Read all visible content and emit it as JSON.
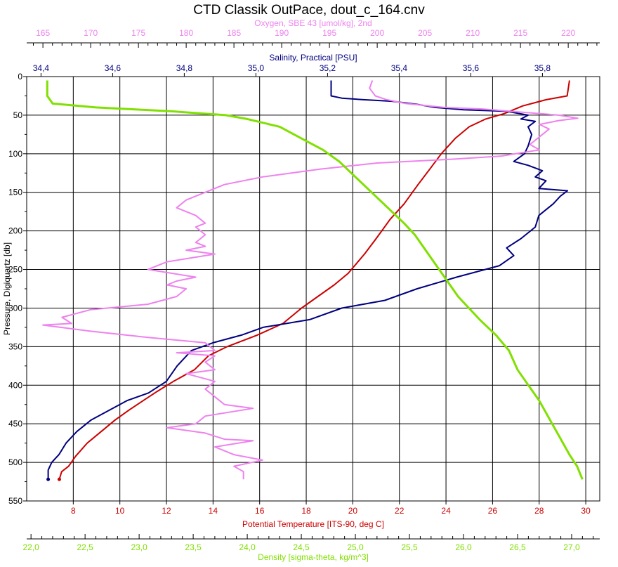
{
  "chart_data": {
    "type": "line",
    "title": "CTD Classik OutPace, dout_c_164.cnv",
    "grid": true,
    "y_axis": {
      "label": "Pressure, Digiquartz [db]",
      "range": [
        0,
        550
      ],
      "ticks": [
        0,
        50,
        100,
        150,
        200,
        250,
        300,
        350,
        400,
        450,
        500,
        550
      ],
      "tick_labels": [
        "0",
        "50",
        "100",
        "150",
        "200",
        "250",
        "300",
        "350",
        "400",
        "450",
        "500",
        "550"
      ],
      "inverted": true
    },
    "x_axes": [
      {
        "id": "oxygen",
        "label": "Oxygen, SBE 43 [umol/kg], 2nd",
        "position": "top",
        "range": [
          163.3,
          223.3
        ],
        "color": "#ee82ee",
        "ticks": [
          165,
          170,
          175,
          180,
          185,
          190,
          195,
          200,
          205,
          210,
          215,
          220
        ],
        "tick_labels": [
          "165",
          "170",
          "175",
          "180",
          "185",
          "190",
          "195",
          "200",
          "205",
          "210",
          "215",
          "220"
        ]
      },
      {
        "id": "salinity",
        "label": "Salinity, Practical [PSU]",
        "position": "top",
        "range": [
          34.36,
          35.96
        ],
        "color": "#000080",
        "ticks": [
          34.4,
          34.6,
          34.8,
          35.0,
          35.2,
          35.4,
          35.6,
          35.8
        ],
        "tick_labels": [
          "34,4",
          "34,6",
          "34,8",
          "35,0",
          "35,2",
          "35,4",
          "35,6",
          "35,8"
        ]
      },
      {
        "id": "temperature",
        "label": "Potential Temperature [ITS-90, deg C]",
        "position": "bottom",
        "range": [
          6.0,
          30.6
        ],
        "color": "#cc0000",
        "ticks": [
          8,
          10,
          12,
          14,
          16,
          18,
          20,
          22,
          24,
          26,
          28,
          30
        ],
        "tick_labels": [
          "8",
          "10",
          "12",
          "14",
          "16",
          "18",
          "20",
          "22",
          "24",
          "26",
          "28",
          "30"
        ]
      },
      {
        "id": "density",
        "label": "Density [sigma-theta, kg/m^3]",
        "position": "bottom",
        "range": [
          21.96,
          27.26
        ],
        "color": "#80e000",
        "ticks": [
          22.0,
          22.5,
          23.0,
          23.5,
          24.0,
          24.5,
          25.0,
          25.5,
          26.0,
          26.5,
          27.0
        ],
        "tick_labels": [
          "22,0",
          "22,5",
          "23,0",
          "23,5",
          "24,0",
          "24,5",
          "25,0",
          "25,5",
          "26,0",
          "26,5",
          "27,0"
        ]
      }
    ],
    "series": [
      {
        "axis": "temperature",
        "color": "#cc0000",
        "points": [
          [
            29.3,
            5
          ],
          [
            29.2,
            25
          ],
          [
            28.3,
            30
          ],
          [
            27.3,
            38
          ],
          [
            26.5,
            48
          ],
          [
            25.7,
            55
          ],
          [
            25.0,
            65
          ],
          [
            24.4,
            80
          ],
          [
            23.8,
            100
          ],
          [
            23.3,
            120
          ],
          [
            22.8,
            140
          ],
          [
            22.2,
            165
          ],
          [
            21.6,
            185
          ],
          [
            21.0,
            210
          ],
          [
            20.5,
            230
          ],
          [
            19.8,
            255
          ],
          [
            19.2,
            270
          ],
          [
            18.5,
            285
          ],
          [
            17.8,
            300
          ],
          [
            17.0,
            320
          ],
          [
            15.9,
            335
          ],
          [
            14.6,
            350
          ],
          [
            13.8,
            362
          ],
          [
            13.2,
            380
          ],
          [
            12.3,
            395
          ],
          [
            11.6,
            408
          ],
          [
            11.0,
            420
          ],
          [
            10.4,
            432
          ],
          [
            9.8,
            445
          ],
          [
            9.2,
            460
          ],
          [
            8.6,
            475
          ],
          [
            8.1,
            492
          ],
          [
            7.8,
            505
          ],
          [
            7.5,
            512
          ],
          [
            7.4,
            522
          ]
        ]
      },
      {
        "axis": "salinity",
        "color": "#000080",
        "points": [
          [
            35.21,
            5
          ],
          [
            35.21,
            25
          ],
          [
            35.24,
            28
          ],
          [
            35.3,
            30
          ],
          [
            35.38,
            32
          ],
          [
            35.45,
            36
          ],
          [
            35.5,
            40
          ],
          [
            35.58,
            43
          ],
          [
            35.7,
            45
          ],
          [
            35.76,
            50
          ],
          [
            35.74,
            55
          ],
          [
            35.78,
            58
          ],
          [
            35.76,
            65
          ],
          [
            35.77,
            75
          ],
          [
            35.76,
            90
          ],
          [
            35.75,
            100
          ],
          [
            35.72,
            110
          ],
          [
            35.76,
            115
          ],
          [
            35.8,
            122
          ],
          [
            35.78,
            130
          ],
          [
            35.81,
            135
          ],
          [
            35.79,
            145
          ],
          [
            35.87,
            148
          ],
          [
            35.85,
            155
          ],
          [
            35.83,
            165
          ],
          [
            35.79,
            180
          ],
          [
            35.78,
            195
          ],
          [
            35.74,
            210
          ],
          [
            35.7,
            222
          ],
          [
            35.72,
            232
          ],
          [
            35.68,
            245
          ],
          [
            35.56,
            260
          ],
          [
            35.45,
            275
          ],
          [
            35.36,
            290
          ],
          [
            35.24,
            300
          ],
          [
            35.15,
            315
          ],
          [
            35.02,
            325
          ],
          [
            34.96,
            335
          ],
          [
            34.88,
            345
          ],
          [
            34.82,
            355
          ],
          [
            34.78,
            375
          ],
          [
            34.75,
            395
          ],
          [
            34.7,
            410
          ],
          [
            34.64,
            420
          ],
          [
            34.6,
            430
          ],
          [
            34.54,
            445
          ],
          [
            34.5,
            460
          ],
          [
            34.47,
            475
          ],
          [
            34.45,
            490
          ],
          [
            34.43,
            500
          ],
          [
            34.42,
            510
          ],
          [
            34.42,
            522
          ]
        ]
      },
      {
        "axis": "oxygen",
        "color": "#ee82ee",
        "points": [
          [
            199.5,
            5
          ],
          [
            199.2,
            15
          ],
          [
            199.8,
            25
          ],
          [
            201,
            30
          ],
          [
            203,
            35
          ],
          [
            207,
            40
          ],
          [
            211,
            42
          ],
          [
            215,
            46
          ],
          [
            219,
            50
          ],
          [
            221,
            54
          ],
          [
            219,
            57
          ],
          [
            217,
            62
          ],
          [
            218,
            68
          ],
          [
            217,
            78
          ],
          [
            216,
            88
          ],
          [
            217,
            95
          ],
          [
            213,
            103
          ],
          [
            208,
            107
          ],
          [
            200,
            112
          ],
          [
            194,
            120
          ],
          [
            188,
            130
          ],
          [
            184,
            140
          ],
          [
            182,
            150
          ],
          [
            180,
            160
          ],
          [
            179,
            170
          ],
          [
            181,
            180
          ],
          [
            182,
            190
          ],
          [
            181,
            195
          ],
          [
            182,
            205
          ],
          [
            181,
            215
          ],
          [
            182,
            220
          ],
          [
            180,
            225
          ],
          [
            183,
            230
          ],
          [
            178,
            240
          ],
          [
            176,
            250
          ],
          [
            181,
            260
          ],
          [
            179,
            265
          ],
          [
            178,
            270
          ],
          [
            180,
            275
          ],
          [
            179,
            285
          ],
          [
            176,
            295
          ],
          [
            170,
            302
          ],
          [
            167,
            312
          ],
          [
            168,
            320
          ],
          [
            165,
            322
          ],
          [
            170,
            330
          ],
          [
            176,
            338
          ],
          [
            182,
            345
          ],
          [
            183,
            355
          ],
          [
            179,
            358
          ],
          [
            183,
            362
          ],
          [
            182,
            370
          ],
          [
            183,
            380
          ],
          [
            180,
            385
          ],
          [
            183,
            395
          ],
          [
            182,
            405
          ],
          [
            183,
            415
          ],
          [
            184,
            425
          ],
          [
            187,
            430
          ],
          [
            182,
            440
          ],
          [
            181,
            450
          ],
          [
            178,
            455
          ],
          [
            182,
            462
          ],
          [
            184,
            470
          ],
          [
            187,
            472
          ],
          [
            183,
            480
          ],
          [
            185,
            490
          ],
          [
            188,
            497
          ],
          [
            185,
            505
          ],
          [
            186,
            512
          ],
          [
            186,
            522
          ]
        ]
      },
      {
        "axis": "density",
        "color": "#80e000",
        "points": [
          [
            22.15,
            5
          ],
          [
            22.15,
            25
          ],
          [
            22.2,
            35
          ],
          [
            22.6,
            40
          ],
          [
            23.3,
            45
          ],
          [
            23.8,
            50
          ],
          [
            24.0,
            55
          ],
          [
            24.3,
            65
          ],
          [
            24.5,
            80
          ],
          [
            24.7,
            95
          ],
          [
            24.85,
            110
          ],
          [
            25.0,
            130
          ],
          [
            25.15,
            150
          ],
          [
            25.3,
            170
          ],
          [
            25.45,
            190
          ],
          [
            25.55,
            205
          ],
          [
            25.65,
            225
          ],
          [
            25.75,
            245
          ],
          [
            25.85,
            265
          ],
          [
            25.95,
            285
          ],
          [
            26.05,
            300
          ],
          [
            26.15,
            315
          ],
          [
            26.3,
            335
          ],
          [
            26.42,
            355
          ],
          [
            26.5,
            380
          ],
          [
            26.6,
            400
          ],
          [
            26.7,
            420
          ],
          [
            26.8,
            445
          ],
          [
            26.9,
            470
          ],
          [
            26.98,
            490
          ],
          [
            27.05,
            505
          ],
          [
            27.1,
            522
          ]
        ]
      }
    ]
  }
}
